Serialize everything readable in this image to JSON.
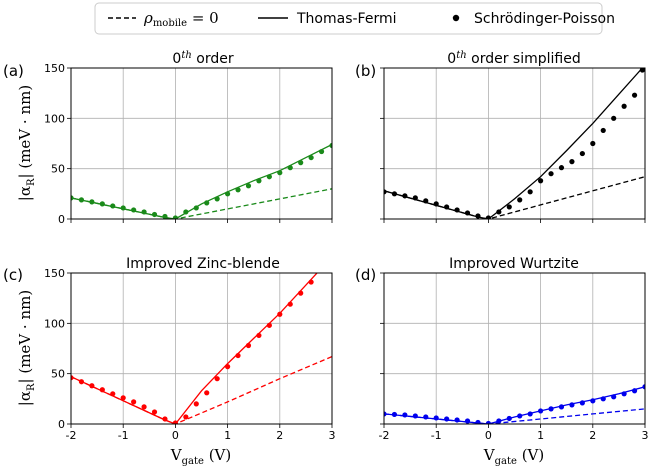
{
  "legend": {
    "entries": [
      {
        "label_main": "ρ",
        "label_sub": "mobile",
        "label_tail": " = 0",
        "style": "dashed"
      },
      {
        "label": "Thomas-Fermi",
        "style": "solid"
      },
      {
        "label": "Schrödinger-Poisson",
        "style": "dots"
      }
    ]
  },
  "axes_common": {
    "xlabel_main": "V",
    "xlabel_sub": "gate",
    "xlabel_unit": " (V)",
    "ylabel_main": "|α",
    "ylabel_sub": "R",
    "ylabel_unit": "| (meV · nm)",
    "xlim": [
      -2,
      3
    ],
    "ylim": [
      0,
      150
    ],
    "xticks": [
      -2,
      -1,
      0,
      1,
      2,
      3
    ],
    "yticks": [
      0,
      50,
      100,
      150
    ],
    "grid": true
  },
  "chart_data": [
    {
      "type": "line",
      "panel_label": "(a)",
      "title": "0th order",
      "title_base": "0",
      "title_sup": "th",
      "title_tail": " order",
      "color": "#1a8a1a",
      "series": [
        {
          "name": "ρmobile = 0",
          "style": "dashed",
          "x": [
            -2,
            -0.2,
            0,
            1,
            2,
            3
          ],
          "y": [
            21,
            1.5,
            0,
            10,
            20,
            30
          ]
        },
        {
          "name": "Thomas-Fermi",
          "style": "solid",
          "x": [
            -2,
            -0.2,
            0,
            0.5,
            1,
            1.5,
            2,
            2.5,
            3
          ],
          "y": [
            21,
            1.5,
            0,
            15,
            27,
            38,
            48,
            61,
            74
          ]
        },
        {
          "name": "Schrödinger-Poisson",
          "style": "dots",
          "x": [
            -2,
            -1.8,
            -1.6,
            -1.4,
            -1.2,
            -1,
            -0.8,
            -0.6,
            -0.4,
            -0.2,
            0,
            0.2,
            0.4,
            0.6,
            0.8,
            1,
            1.2,
            1.4,
            1.6,
            1.8,
            2,
            2.2,
            2.4,
            2.6,
            2.8,
            3
          ],
          "y": [
            21,
            19,
            17,
            15,
            13,
            11,
            9,
            7,
            4.5,
            2.5,
            1,
            7,
            11,
            16,
            20,
            25,
            29,
            33,
            38,
            42,
            46,
            51,
            56,
            61,
            67,
            73
          ]
        }
      ]
    },
    {
      "type": "line",
      "panel_label": "(b)",
      "title": "0th order simplified",
      "title_base": "0",
      "title_sup": "th",
      "title_tail": " order simplified",
      "color": "#000000",
      "series": [
        {
          "name": "ρmobile = 0",
          "style": "dashed",
          "x": [
            -2,
            -0.2,
            0,
            1,
            2,
            3
          ],
          "y": [
            28,
            2,
            0,
            14,
            28,
            42
          ]
        },
        {
          "name": "Thomas-Fermi",
          "style": "solid",
          "x": [
            -2,
            -0.2,
            0,
            0.5,
            1,
            1.5,
            2,
            2.5,
            3
          ],
          "y": [
            28,
            2,
            0,
            20,
            42,
            68,
            95,
            124,
            153
          ]
        },
        {
          "name": "Schrödinger-Poisson",
          "style": "dots",
          "x": [
            -2,
            -1.8,
            -1.6,
            -1.4,
            -1.2,
            -1,
            -0.8,
            -0.6,
            -0.4,
            -0.2,
            0,
            0.2,
            0.4,
            0.6,
            0.8,
            1,
            1.2,
            1.4,
            1.6,
            1.8,
            2,
            2.2,
            2.4,
            2.6,
            2.8,
            2.95
          ],
          "y": [
            27,
            25,
            23,
            21,
            18,
            15,
            12,
            9,
            6,
            3,
            1,
            7,
            12,
            19,
            27,
            38,
            45,
            51,
            57,
            65,
            75,
            88,
            100,
            112,
            123,
            148
          ]
        }
      ]
    },
    {
      "type": "line",
      "panel_label": "(c)",
      "title": "Improved Zinc-blende",
      "color": "#ff0000",
      "series": [
        {
          "name": "ρmobile = 0",
          "style": "dashed",
          "x": [
            -2,
            -0.2,
            0,
            1,
            2,
            3
          ],
          "y": [
            47,
            4,
            0,
            22,
            45,
            67
          ]
        },
        {
          "name": "Thomas-Fermi",
          "style": "solid",
          "x": [
            -2,
            -0.2,
            0,
            0.5,
            1,
            1.5,
            2,
            2.5,
            2.8
          ],
          "y": [
            47,
            4,
            0,
            33,
            60,
            85,
            110,
            138,
            155
          ]
        },
        {
          "name": "Schrödinger-Poisson",
          "style": "dots",
          "x": [
            -2,
            -1.8,
            -1.6,
            -1.4,
            -1.2,
            -1,
            -0.8,
            -0.6,
            -0.4,
            -0.2,
            0,
            0.2,
            0.4,
            0.6,
            0.8,
            1,
            1.2,
            1.4,
            1.6,
            1.8,
            2,
            2.2,
            2.4,
            2.6
          ],
          "y": [
            46,
            42,
            38,
            34,
            30,
            26,
            22,
            17,
            12,
            5,
            1,
            7,
            20,
            31,
            45,
            57,
            68,
            78,
            88,
            98,
            109,
            119,
            130,
            141
          ]
        }
      ]
    },
    {
      "type": "line",
      "panel_label": "(d)",
      "title": "Improved Wurtzite",
      "color": "#0000ee",
      "series": [
        {
          "name": "ρmobile = 0",
          "style": "dashed",
          "x": [
            -2,
            -0.2,
            0,
            1,
            2,
            3
          ],
          "y": [
            10,
            1,
            0,
            5,
            10,
            15
          ]
        },
        {
          "name": "Thomas-Fermi",
          "style": "solid",
          "x": [
            -2,
            -0.2,
            0,
            0.5,
            1,
            1.5,
            2,
            2.5,
            3
          ],
          "y": [
            10,
            1,
            0,
            7,
            13,
            19,
            24,
            30,
            37
          ]
        },
        {
          "name": "Schrödinger-Poisson",
          "style": "dots",
          "x": [
            -2,
            -1.8,
            -1.6,
            -1.4,
            -1.2,
            -1,
            -0.8,
            -0.6,
            -0.4,
            -0.2,
            0,
            0.2,
            0.4,
            0.6,
            0.8,
            1,
            1.2,
            1.4,
            1.6,
            1.8,
            2,
            2.2,
            2.4,
            2.6,
            2.8,
            3
          ],
          "y": [
            10,
            9.5,
            9,
            8,
            7,
            6,
            5,
            4,
            3,
            1.5,
            0.5,
            3,
            5.5,
            8,
            10,
            13,
            15,
            17,
            19,
            21,
            23,
            25,
            27,
            30,
            33,
            37
          ]
        }
      ]
    }
  ]
}
